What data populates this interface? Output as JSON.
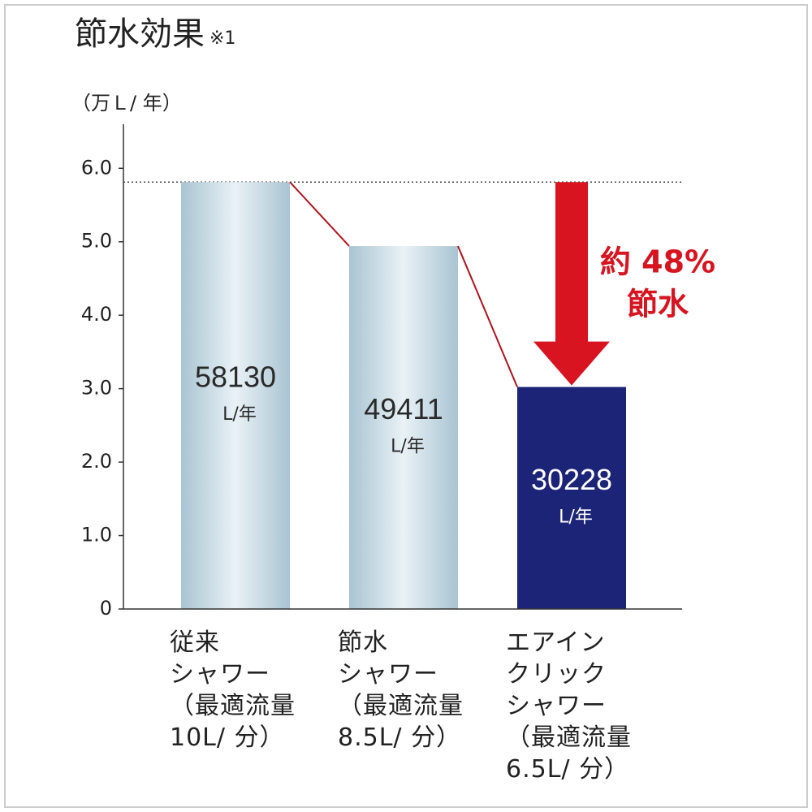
{
  "chart_data": {
    "type": "bar",
    "title": "節水効果",
    "title_note": "※1",
    "y_label": "（万Ｌ/ 年）",
    "categories": [
      "従来\nシャワー\n（最適流量\n10L/ 分）",
      "節水\nシャワー\n（最適流量\n8.5L/ 分）",
      "エアイン\nクリック\nシャワー\n（最適流量\n6.5L/ 分）"
    ],
    "values": [
      5.813,
      4.9411,
      3.0228
    ],
    "value_labels": [
      "58130",
      "49411",
      "30228"
    ],
    "value_unit": "L/年",
    "colors": [
      "#b8d0dc",
      "#b8d0dc",
      "#1c2478"
    ],
    "ylim": [
      0,
      6.6
    ],
    "yticks": [
      0,
      {
        "value": 1,
        "label": "1.0"
      },
      {
        "value": 2,
        "label": "2.0"
      },
      {
        "value": 3,
        "label": "3.0"
      },
      {
        "value": 4,
        "label": "4.0"
      },
      {
        "value": 5,
        "label": "5.0"
      },
      {
        "value": 6,
        "label": "6.0"
      }
    ],
    "annotation": [
      "約 48%",
      "節水"
    ],
    "annotation_color": "#d7141f"
  }
}
